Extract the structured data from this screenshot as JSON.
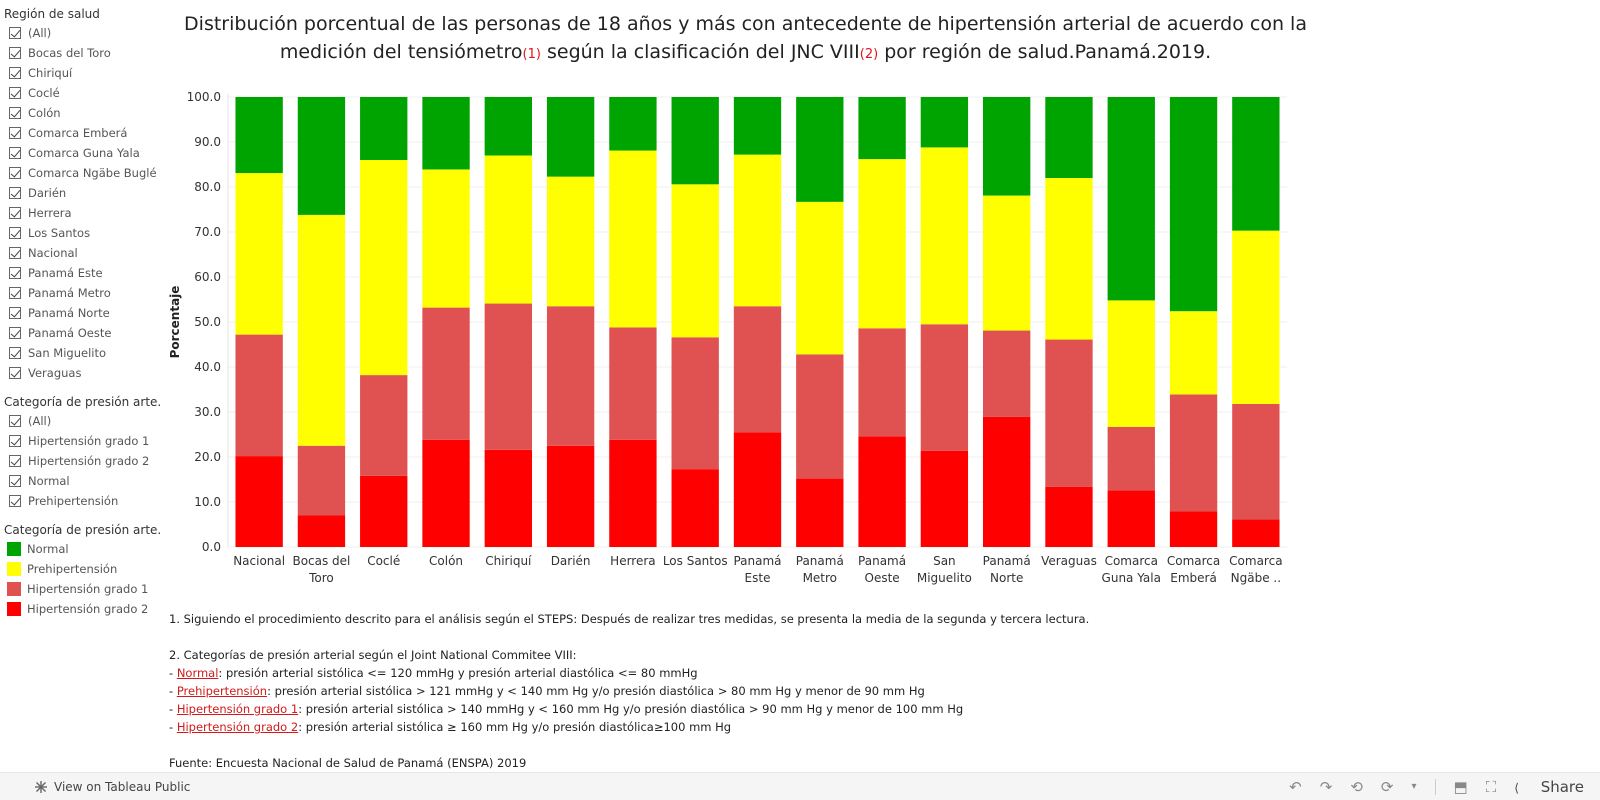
{
  "filters": {
    "region": {
      "title": "Región de salud",
      "items": [
        "(All)",
        "Bocas del Toro",
        "Chiriquí",
        "Coclé",
        "Colón",
        "Comarca Emberá",
        "Comarca Guna Yala",
        "Comarca Ngäbe Buglé",
        "Darién",
        "Herrera",
        "Los Santos",
        "Nacional",
        "Panamá Este",
        "Panamá Metro",
        "Panamá Norte",
        "Panamá Oeste",
        "San Miguelito",
        "Veraguas"
      ]
    },
    "category": {
      "title": "Categoría de presión arte...",
      "items": [
        "(All)",
        "Hipertensión grado 1",
        "Hipertensión grado 2",
        "Normal",
        "Prehipertensión"
      ]
    }
  },
  "legend": {
    "title": "Categoría de presión arte...",
    "items": [
      {
        "label": "Normal",
        "color": "#00a400"
      },
      {
        "label": "Prehipertensión",
        "color": "#ffff00"
      },
      {
        "label": "Hipertensión grado 1",
        "color": "#e05252"
      },
      {
        "label": "Hipertensión grado 2",
        "color": "#ff0000"
      }
    ]
  },
  "title": {
    "line1": "Distribución porcentual de las personas de 18 años y más con antecedente de hipertensión arterial de acuerdo con la",
    "line2_a": "medición del tensiómetro",
    "fn1": "(1)",
    "line2_b": " según la clasificación del JNC VIII",
    "fn2": "(2)",
    "line2_c": " por región de salud.Panamá.2019."
  },
  "chart_data": {
    "type": "bar",
    "stacked": true,
    "ylabel": "Porcentaje",
    "ylim": [
      0,
      100
    ],
    "yticks": [
      "0.0",
      "10.0",
      "20.0",
      "30.0",
      "40.0",
      "50.0",
      "60.0",
      "70.0",
      "80.0",
      "90.0",
      "100.0"
    ],
    "grid": true,
    "categories": [
      [
        "Nacional"
      ],
      [
        "Bocas del",
        "Toro"
      ],
      [
        "Coclé"
      ],
      [
        "Colón"
      ],
      [
        "Chiriquí"
      ],
      [
        "Darién"
      ],
      [
        "Herrera"
      ],
      [
        "Los Santos"
      ],
      [
        "Panamá",
        "Este"
      ],
      [
        "Panamá",
        "Metro"
      ],
      [
        "Panamá",
        "Oeste"
      ],
      [
        "San",
        "Miguelito"
      ],
      [
        "Panamá",
        "Norte"
      ],
      [
        "Veraguas"
      ],
      [
        "Comarca",
        "Guna Yala"
      ],
      [
        "Comarca",
        "Emberá"
      ],
      [
        "Comarca",
        "Ngäbe .."
      ]
    ],
    "series": [
      {
        "name": "Hipertensión grado 2",
        "color": "#ff0000",
        "values": [
          20.2,
          7.0,
          15.8,
          23.8,
          21.6,
          22.5,
          23.8,
          17.3,
          25.5,
          15.2,
          24.6,
          21.4,
          28.9,
          13.4,
          12.6,
          7.9,
          6.1
        ]
      },
      {
        "name": "Hipertensión grado 1",
        "color": "#e05252",
        "values": [
          27.0,
          15.5,
          22.4,
          29.4,
          32.5,
          31.0,
          25.0,
          29.3,
          28.0,
          27.6,
          24.0,
          28.1,
          19.2,
          32.7,
          14.1,
          26.0,
          25.7
        ]
      },
      {
        "name": "Prehipertensión",
        "color": "#ffff00",
        "values": [
          35.9,
          51.3,
          47.8,
          30.7,
          32.9,
          28.8,
          39.3,
          34.0,
          33.7,
          33.9,
          37.6,
          39.3,
          30.0,
          35.9,
          28.1,
          18.5,
          38.5
        ]
      },
      {
        "name": "Normal",
        "color": "#00a400",
        "values": [
          16.9,
          26.2,
          14.0,
          16.1,
          13.0,
          17.7,
          11.9,
          19.4,
          12.8,
          23.3,
          13.8,
          11.2,
          21.9,
          18.0,
          45.2,
          47.6,
          29.7
        ]
      }
    ]
  },
  "notes": {
    "n1": "1. Siguiendo el procedimiento descrito para el análisis según el STEPS: Después de realizar tres medidas, se presenta la media de la segunda y tercera lectura.",
    "n2": "2. Categorías de presión arterial según el Joint National Commitee VIII:",
    "items": [
      {
        "prefix": "- ",
        "link": "Normal",
        "text": ": presión arterial sistólica <= 120 mmHg y presión arterial diastólica <= 80 mmHg"
      },
      {
        "prefix": "- ",
        "link": "Prehipertensión",
        "text": ": presión arterial sistólica > 121 mmHg y < 140 mm Hg y/o presión diastólica > 80 mm Hg y menor de 90 mm Hg"
      },
      {
        "prefix": "- ",
        "link": " Hipertensión grado 1",
        "text": ": presión arterial sistólica > 140 mmHg y < 160 mm Hg y/o presión diastólica > 90 mm Hg y menor de 100 mm Hg"
      },
      {
        "prefix": "- ",
        "link": "Hipertensión grado 2",
        "text": ": presión arterial sistólica ≥ 160 mm Hg y/o presión diastólica≥100 mm Hg"
      }
    ],
    "source": "Fuente: Encuesta Nacional de Salud de Panamá (ENSPA) 2019"
  },
  "footer": {
    "view_label": "View on Tableau Public",
    "share_label": "Share"
  }
}
